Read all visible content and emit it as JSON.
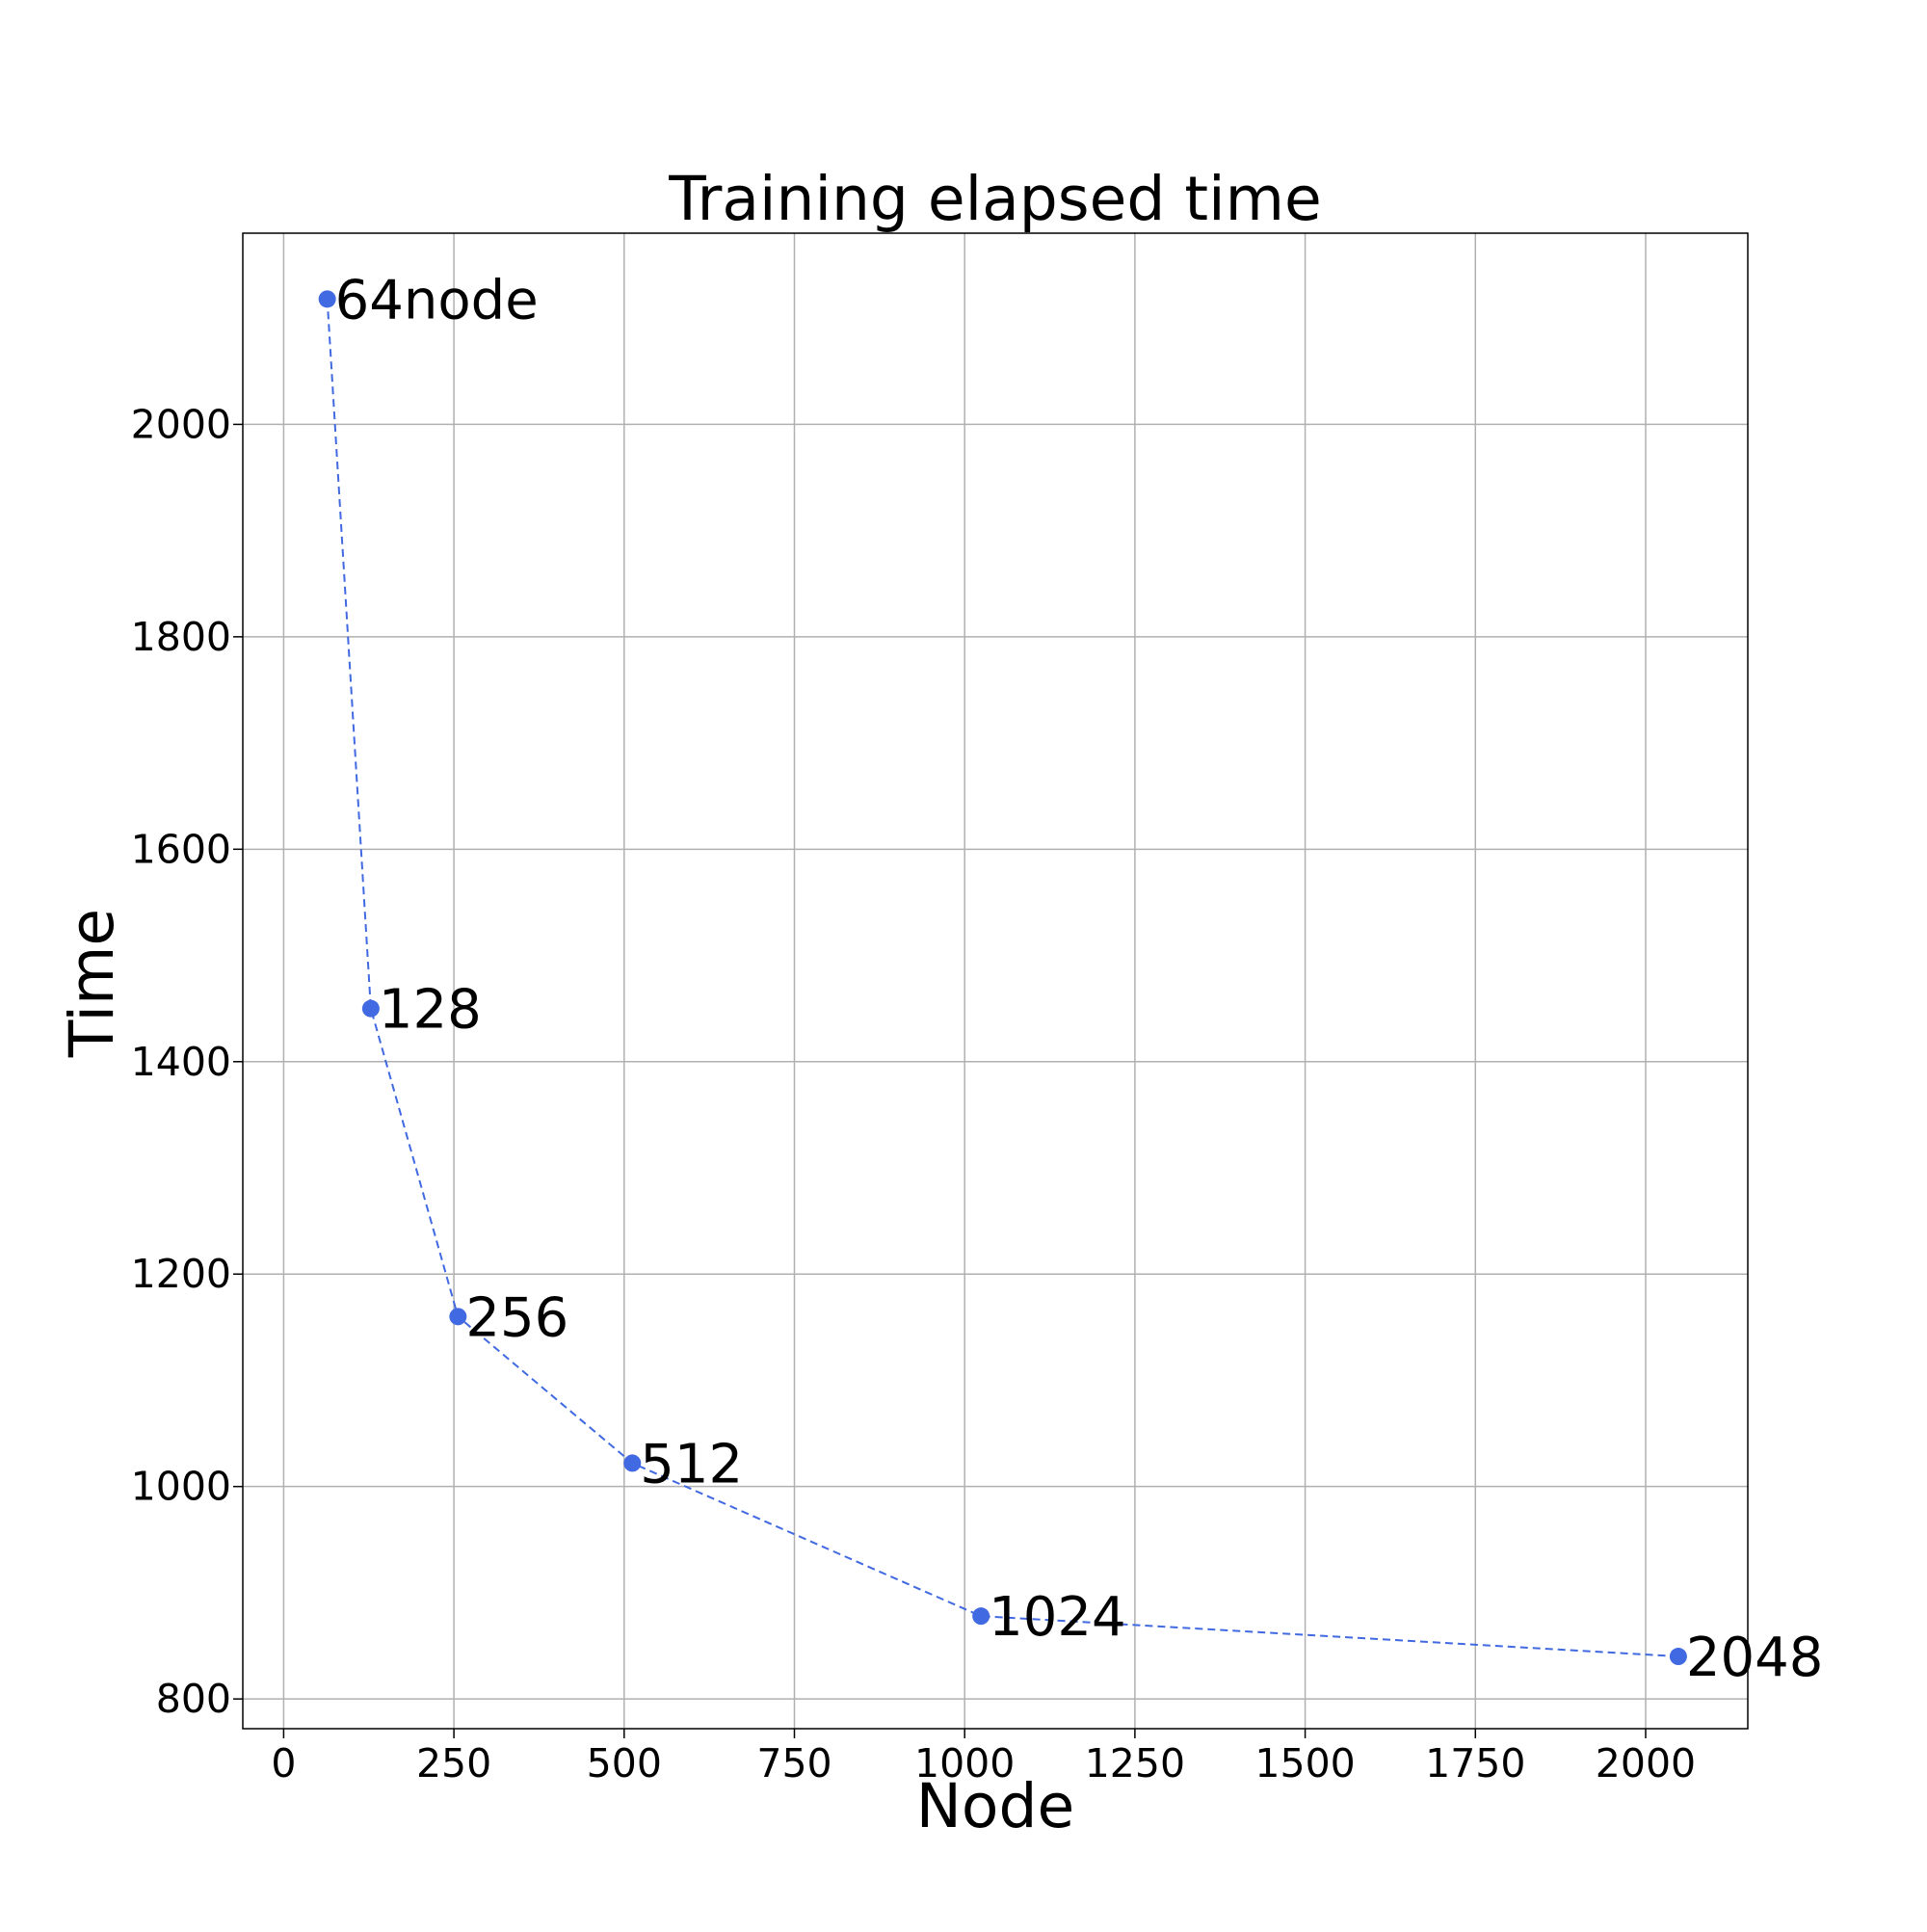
{
  "chart_data": {
    "type": "line",
    "title": "Training elapsed time",
    "xlabel": "Node",
    "ylabel": "Time",
    "xlim": [
      -60,
      2150
    ],
    "ylim": [
      772,
      2180
    ],
    "xticks": [
      0,
      250,
      500,
      750,
      1000,
      1250,
      1500,
      1750,
      2000
    ],
    "yticks": [
      800,
      1000,
      1200,
      1400,
      1600,
      1800,
      2000
    ],
    "grid": true,
    "line_style": "dashed",
    "color": "#4169e1",
    "points": [
      {
        "x": 64,
        "y": 2118,
        "label": "64node"
      },
      {
        "x": 128,
        "y": 1450,
        "label": "128"
      },
      {
        "x": 256,
        "y": 1160,
        "label": "256"
      },
      {
        "x": 512,
        "y": 1022,
        "label": "512"
      },
      {
        "x": 1024,
        "y": 878,
        "label": "1024"
      },
      {
        "x": 2048,
        "y": 840,
        "label": "2048"
      }
    ]
  }
}
